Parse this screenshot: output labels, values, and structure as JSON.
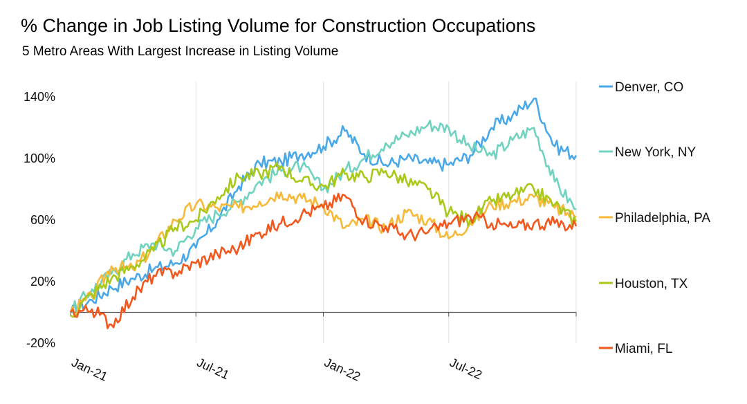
{
  "title": "% Change in Job Listing Volume for Construction Occupations",
  "subtitle": "5 Metro Areas With Largest Increase in Listing Volume",
  "chart_data": {
    "type": "line",
    "title": "% Change in Job Listing Volume for Construction Occupations",
    "subtitle": "5 Metro Areas With Largest Increase in Listing Volume",
    "xlabel": "",
    "ylabel": "",
    "x_ticks": [
      "Jan-21",
      "Jul-21",
      "Jan-22",
      "Jul-22"
    ],
    "x_tick_dates": [
      "2021-01-01",
      "2021-07-01",
      "2022-01-01",
      "2022-07-01"
    ],
    "x_range": [
      "2021-01-01",
      "2023-01-01"
    ],
    "y_ticks": [
      "-20%",
      "20%",
      "60%",
      "100%",
      "140%"
    ],
    "y_tick_values": [
      -20,
      20,
      60,
      100,
      140
    ],
    "ylim": [
      -20,
      150
    ],
    "grid": "vertical",
    "legend_position": "right",
    "x": [
      "2021-01-01",
      "2021-02-01",
      "2021-03-01",
      "2021-04-01",
      "2021-05-01",
      "2021-06-01",
      "2021-07-01",
      "2021-08-01",
      "2021-09-01",
      "2021-10-01",
      "2021-11-01",
      "2021-12-01",
      "2022-01-01",
      "2022-02-01",
      "2022-03-01",
      "2022-04-01",
      "2022-05-01",
      "2022-06-01",
      "2022-07-01",
      "2022-08-01",
      "2022-09-01",
      "2022-10-01",
      "2022-11-01",
      "2022-12-01",
      "2023-01-01"
    ],
    "series": [
      {
        "name": "Denver, CO",
        "color": "#4aa8e8",
        "values": [
          0,
          8,
          16,
          22,
          28,
          32,
          42,
          60,
          82,
          97,
          98,
          103,
          108,
          118,
          103,
          96,
          100,
          97,
          96,
          102,
          120,
          128,
          139,
          108,
          102
        ]
      },
      {
        "name": "New York, NY",
        "color": "#72d2c0",
        "values": [
          0,
          15,
          25,
          38,
          45,
          40,
          55,
          64,
          72,
          85,
          92,
          95,
          80,
          92,
          100,
          110,
          115,
          122,
          120,
          107,
          102,
          112,
          120,
          85,
          67
        ]
      },
      {
        "name": "Philadelphia, PA",
        "color": "#f6b93a",
        "values": [
          0,
          10,
          30,
          28,
          42,
          60,
          70,
          68,
          68,
          72,
          78,
          74,
          70,
          55,
          60,
          55,
          65,
          60,
          48,
          58,
          70,
          72,
          75,
          68,
          62
        ]
      },
      {
        "name": "Houston, TX",
        "color": "#a8c81a",
        "values": [
          -2,
          12,
          22,
          30,
          40,
          55,
          60,
          75,
          88,
          90,
          95,
          85,
          82,
          90,
          88,
          92,
          85,
          80,
          65,
          60,
          72,
          76,
          80,
          70,
          59
        ]
      },
      {
        "name": "Miami, FL",
        "color": "#f2571d",
        "values": [
          0,
          2,
          -8,
          10,
          24,
          26,
          32,
          38,
          42,
          52,
          58,
          64,
          68,
          76,
          60,
          56,
          50,
          52,
          58,
          62,
          58,
          55,
          58,
          58,
          56
        ]
      }
    ]
  }
}
